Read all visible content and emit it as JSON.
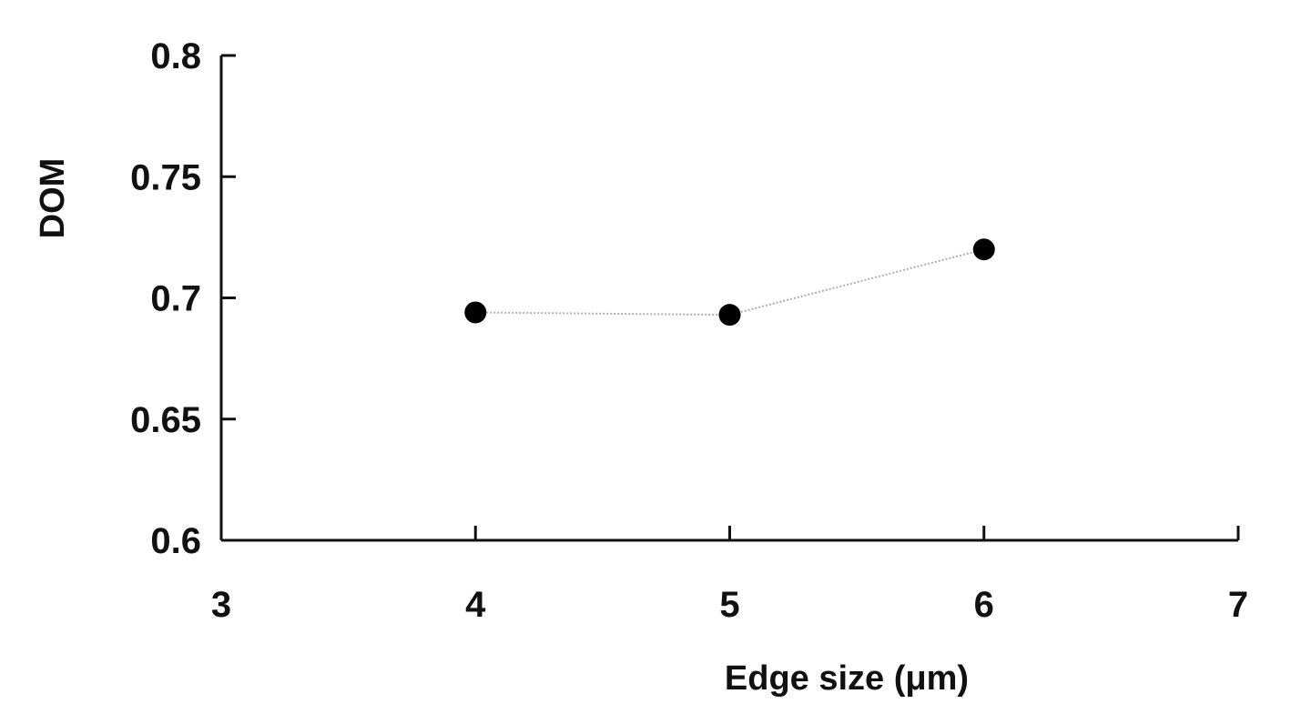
{
  "chart_data": {
    "type": "line",
    "title": "",
    "xlabel": "Edge size (μm)",
    "ylabel": "DOM",
    "xlim": [
      3,
      7
    ],
    "ylim": [
      0.6,
      0.8
    ],
    "xticks": [
      "3",
      "4",
      "5",
      "6",
      "7"
    ],
    "yticks": [
      "0.6",
      "0.65",
      "0.7",
      "0.75",
      "0.8"
    ],
    "grid": false,
    "legend": "none",
    "series": [
      {
        "x": [
          4,
          5,
          6
        ],
        "y": [
          0.694,
          0.693,
          0.72
        ],
        "marker_color": "#000000",
        "line_color": "#b0b0b0",
        "line_style": "dotted"
      }
    ]
  }
}
